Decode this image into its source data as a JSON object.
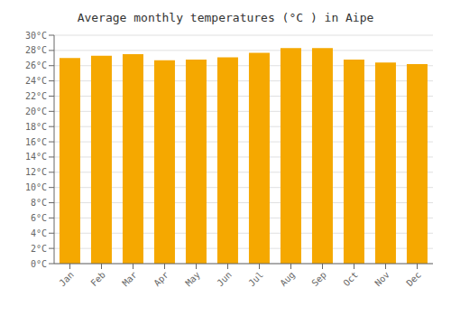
{
  "chart_data": {
    "type": "bar",
    "title": "Average monthly temperatures (°C ) in Aipe",
    "categories": [
      "Jan",
      "Feb",
      "Mar",
      "Apr",
      "May",
      "Jun",
      "Jul",
      "Aug",
      "Sep",
      "Oct",
      "Nov",
      "Dec"
    ],
    "values": [
      27.0,
      27.3,
      27.5,
      26.7,
      26.8,
      27.1,
      27.7,
      28.3,
      28.3,
      26.8,
      26.4,
      26.2
    ],
    "color": "#F5A800",
    "ylim": [
      0,
      30
    ],
    "yticks": [
      {
        "value": 0,
        "label": "0°C"
      },
      {
        "value": 2,
        "label": "2°C"
      },
      {
        "value": 4,
        "label": "4°C"
      },
      {
        "value": 6,
        "label": "6°C"
      },
      {
        "value": 8,
        "label": "8°C"
      },
      {
        "value": 10,
        "label": "10°C"
      },
      {
        "value": 12,
        "label": "12°C"
      },
      {
        "value": 14,
        "label": "14°C"
      },
      {
        "value": 16,
        "label": "16°C"
      },
      {
        "value": 18,
        "label": "18°C"
      },
      {
        "value": 20,
        "label": "20°C"
      },
      {
        "value": 22,
        "label": "22°C"
      },
      {
        "value": 24,
        "label": "24°C"
      },
      {
        "value": 26,
        "label": "26°C"
      },
      {
        "value": 28,
        "label": "28°C"
      },
      {
        "value": 30,
        "label": "30°C"
      }
    ],
    "grid": true
  }
}
